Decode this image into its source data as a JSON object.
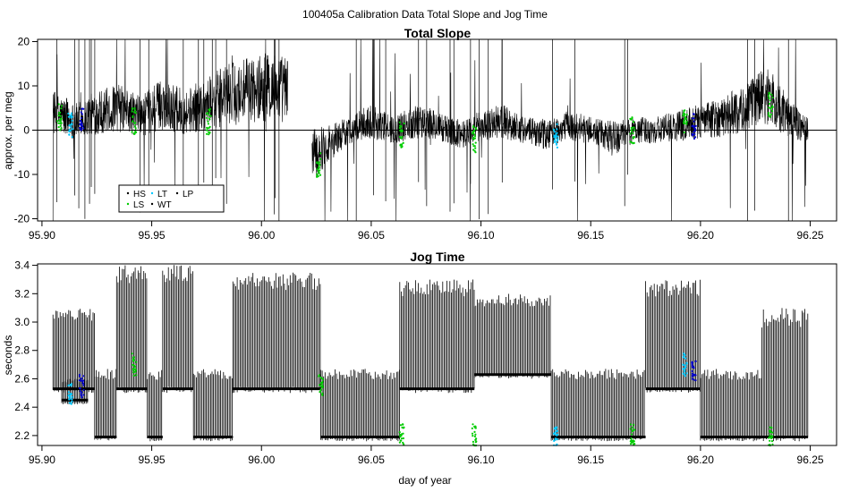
{
  "figure": {
    "title": "100405a   Calibration Data Total Slope and Jog Time"
  },
  "chart_data": [
    {
      "type": "line",
      "title": "Total Slope",
      "xlabel": "",
      "ylabel": "approx. per meg",
      "xlim": [
        95.898,
        96.262
      ],
      "ylim": [
        -20.5,
        20.5
      ],
      "x_ticks": [
        "95.90",
        "95.95",
        "96.00",
        "96.05",
        "96.10",
        "96.15",
        "96.20",
        "96.25"
      ],
      "x_tick_values": [
        95.9,
        95.95,
        96.0,
        96.05,
        96.1,
        96.15,
        96.2,
        96.25
      ],
      "y_ticks": [
        "-20",
        "-10",
        "0",
        "10",
        "20"
      ],
      "y_tick_values": [
        -20,
        -10,
        0,
        10,
        20
      ],
      "reference_line_y": 0,
      "grid": false,
      "legend": {
        "position": "bottom-left",
        "entries": [
          {
            "label": "HS",
            "color": "#000000"
          },
          {
            "label": "LT",
            "color": "#00c8ff"
          },
          {
            "label": "LP",
            "color": "#000000"
          },
          {
            "label": "LS",
            "color": "#00cc00"
          },
          {
            "label": "WT",
            "color": "#000000"
          }
        ]
      },
      "series": [
        {
          "name": "Total Slope",
          "color": "#000000",
          "segments": [
            {
              "x_start": 95.905,
              "x_end": 96.012,
              "envelope": [
                [
                  95.905,
                  4
                ],
                [
                  95.915,
                  2
                ],
                [
                  95.925,
                  4
                ],
                [
                  95.935,
                  5
                ],
                [
                  95.945,
                  3
                ],
                [
                  95.955,
                  6
                ],
                [
                  95.965,
                  4
                ],
                [
                  95.975,
                  6
                ],
                [
                  95.985,
                  8
                ],
                [
                  95.995,
                  9
                ],
                [
                  96.005,
                  10
                ],
                [
                  96.012,
                  9
                ]
              ]
            },
            {
              "x_start": 96.023,
              "x_end": 96.249,
              "envelope": [
                [
                  96.023,
                  -6
                ],
                [
                  96.03,
                  -3
                ],
                [
                  96.04,
                  0
                ],
                [
                  96.05,
                  2
                ],
                [
                  96.06,
                  0
                ],
                [
                  96.07,
                  2
                ],
                [
                  96.08,
                  1
                ],
                [
                  96.09,
                  -1
                ],
                [
                  96.1,
                  1
                ],
                [
                  96.11,
                  2
                ],
                [
                  96.12,
                  0
                ],
                [
                  96.13,
                  -1
                ],
                [
                  96.14,
                  1
                ],
                [
                  96.15,
                  0
                ],
                [
                  96.16,
                  -2
                ],
                [
                  96.17,
                  0
                ],
                [
                  96.18,
                  0
                ],
                [
                  96.19,
                  1
                ],
                [
                  96.2,
                  2
                ],
                [
                  96.21,
                  3
                ],
                [
                  96.22,
                  5
                ],
                [
                  96.23,
                  8
                ],
                [
                  96.24,
                  3
                ],
                [
                  96.249,
                  0
                ]
              ]
            }
          ]
        }
      ],
      "marker_clusters": [
        {
          "x": 95.908,
          "color": "#00cc00",
          "y_center": 3
        },
        {
          "x": 95.913,
          "color": "#00c8ff",
          "y_center": 1
        },
        {
          "x": 95.918,
          "color": "#0000cc",
          "y_center": 2
        },
        {
          "x": 95.942,
          "color": "#00cc00",
          "y_center": 2
        },
        {
          "x": 95.976,
          "color": "#00cc00",
          "y_center": 2
        },
        {
          "x": 96.026,
          "color": "#00cc00",
          "y_center": -8
        },
        {
          "x": 96.064,
          "color": "#00cc00",
          "y_center": -1
        },
        {
          "x": 96.097,
          "color": "#00cc00",
          "y_center": -2
        },
        {
          "x": 96.134,
          "color": "#00c8ff",
          "y_center": -1
        },
        {
          "x": 96.169,
          "color": "#00cc00",
          "y_center": 0
        },
        {
          "x": 96.193,
          "color": "#00cc00",
          "y_center": 2
        },
        {
          "x": 96.197,
          "color": "#0000cc",
          "y_center": 1
        },
        {
          "x": 96.232,
          "color": "#00cc00",
          "y_center": 6
        }
      ]
    },
    {
      "type": "line",
      "title": "Jog Time",
      "xlabel": "day of year",
      "ylabel": "seconds",
      "xlim": [
        95.898,
        96.262
      ],
      "ylim": [
        2.13,
        3.41
      ],
      "x_ticks": [
        "95.90",
        "95.95",
        "96.00",
        "96.05",
        "96.10",
        "96.15",
        "96.20",
        "96.25"
      ],
      "x_tick_values": [
        95.9,
        95.95,
        96.0,
        96.05,
        96.1,
        96.15,
        96.2,
        96.25
      ],
      "y_ticks": [
        "2.2",
        "2.4",
        "2.6",
        "2.8",
        "3.0",
        "3.2",
        "3.4"
      ],
      "y_tick_values": [
        2.2,
        2.4,
        2.6,
        2.8,
        3.0,
        3.2,
        3.4
      ],
      "grid": false,
      "series": [
        {
          "name": "Jog Time",
          "color": "#000000",
          "blocks": [
            {
              "x_start": 95.905,
              "x_end": 95.924,
              "low": 2.5,
              "high": 3.1
            },
            {
              "x_start": 95.909,
              "x_end": 95.921,
              "low": 2.42,
              "high": 2.6
            },
            {
              "x_start": 95.924,
              "x_end": 95.934,
              "low": 2.16,
              "high": 2.67
            },
            {
              "x_start": 95.934,
              "x_end": 95.948,
              "low": 2.5,
              "high": 3.41
            },
            {
              "x_start": 95.948,
              "x_end": 95.955,
              "low": 2.16,
              "high": 2.67
            },
            {
              "x_start": 95.955,
              "x_end": 95.969,
              "low": 2.5,
              "high": 3.41
            },
            {
              "x_start": 95.969,
              "x_end": 95.987,
              "low": 2.16,
              "high": 2.67
            },
            {
              "x_start": 95.987,
              "x_end": 96.027,
              "low": 2.5,
              "high": 3.35
            },
            {
              "x_start": 96.027,
              "x_end": 96.063,
              "low": 2.16,
              "high": 2.67
            },
            {
              "x_start": 96.063,
              "x_end": 96.097,
              "low": 2.5,
              "high": 3.3
            },
            {
              "x_start": 96.097,
              "x_end": 96.132,
              "low": 2.6,
              "high": 3.2
            },
            {
              "x_start": 96.132,
              "x_end": 96.175,
              "low": 2.16,
              "high": 2.67
            },
            {
              "x_start": 96.175,
              "x_end": 96.2,
              "low": 2.5,
              "high": 3.3
            },
            {
              "x_start": 96.2,
              "x_end": 96.228,
              "low": 2.16,
              "high": 2.67
            },
            {
              "x_start": 96.228,
              "x_end": 96.249,
              "low": 2.16,
              "high": 3.1
            }
          ]
        }
      ],
      "marker_clusters": [
        {
          "x": 95.913,
          "color": "#00c8ff",
          "y_center": 2.5
        },
        {
          "x": 95.918,
          "color": "#0000cc",
          "y_center": 2.55
        },
        {
          "x": 95.942,
          "color": "#00cc00",
          "y_center": 2.7
        },
        {
          "x": 96.027,
          "color": "#00cc00",
          "y_center": 2.55
        },
        {
          "x": 96.064,
          "color": "#00cc00",
          "y_center": 2.2
        },
        {
          "x": 96.097,
          "color": "#00cc00",
          "y_center": 2.2
        },
        {
          "x": 96.134,
          "color": "#00c8ff",
          "y_center": 2.2
        },
        {
          "x": 96.169,
          "color": "#00cc00",
          "y_center": 2.2
        },
        {
          "x": 96.193,
          "color": "#00c8ff",
          "y_center": 2.7
        },
        {
          "x": 96.197,
          "color": "#0000cc",
          "y_center": 2.65
        },
        {
          "x": 96.232,
          "color": "#00cc00",
          "y_center": 2.2
        }
      ]
    }
  ]
}
